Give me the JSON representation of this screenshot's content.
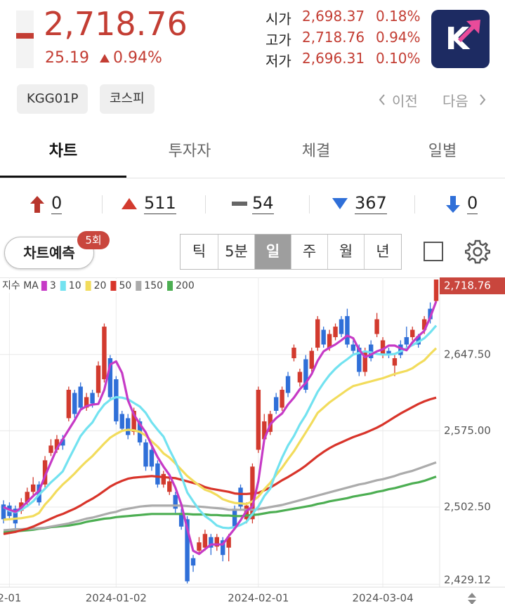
{
  "quote": {
    "price": "2,718.76",
    "change": "25.19",
    "change_rate": "0.94%",
    "rows": [
      {
        "label": "시가",
        "value": "2,698.37",
        "rate": "0.18%"
      },
      {
        "label": "고가",
        "value": "2,718.76",
        "rate": "0.94%"
      },
      {
        "label": "저가",
        "value": "2,696.31",
        "rate": "0.10%"
      }
    ],
    "logo": "K"
  },
  "tags": [
    "KGG01P",
    "코스피"
  ],
  "nav": {
    "prev": "이전",
    "next": "다음"
  },
  "tabs": [
    "차트",
    "투자자",
    "체결",
    "일별"
  ],
  "active_tab": 0,
  "breadth": [
    0,
    511,
    54,
    367,
    0
  ],
  "predict": {
    "label": "차트예측",
    "badge": "5회"
  },
  "periods": [
    "틱",
    "5분",
    "일",
    "주",
    "월",
    "년"
  ],
  "selected_period": 2,
  "chart_data": {
    "type": "candlestick",
    "categories": [
      null,
      "2-01",
      null,
      null,
      null,
      null,
      null,
      null,
      null,
      null,
      null,
      null,
      null,
      null,
      null,
      null,
      null,
      null,
      null,
      "2024-01-02",
      null,
      null,
      null,
      null,
      null,
      null,
      null,
      null,
      null,
      null,
      null,
      null,
      null,
      null,
      null,
      null,
      null,
      null,
      null,
      null,
      null,
      null,
      null,
      "2024-02-01",
      null,
      null,
      null,
      null,
      null,
      null,
      null,
      null,
      null,
      null,
      null,
      null,
      null,
      null,
      null,
      null,
      null,
      null,
      null,
      null,
      "2024-03-04",
      null,
      null,
      null,
      null,
      null,
      null,
      null,
      null,
      null
    ],
    "open": [
      2505,
      2504,
      2501,
      2499,
      2507,
      2517,
      2524,
      2524,
      2554,
      2557,
      2567,
      2587,
      2611,
      2617,
      2597,
      2611,
      2611,
      2624,
      2644,
      2624,
      2591,
      2587,
      2574,
      2584,
      2564,
      2557,
      2544,
      2524,
      2517,
      2514,
      2497,
      2491,
      2454,
      2461,
      2464,
      2474,
      2465,
      2471,
      2464,
      2501,
      2521,
      2491,
      2491,
      2557,
      2567,
      2574,
      2607,
      2597,
      2627,
      2644,
      2621,
      2643,
      2634,
      2654,
      2671,
      2654,
      2664,
      2681,
      2684,
      2657,
      2654,
      2631,
      2657,
      2667,
      2647,
      2651,
      2637,
      2657,
      2664,
      2664,
      2665,
      2671,
      2691,
      2698.37
    ],
    "high": [
      2509,
      2507,
      2504,
      2511,
      2521,
      2531,
      2527,
      2551,
      2567,
      2571,
      2571,
      2617,
      2614,
      2621,
      2611,
      2614,
      2641,
      2677,
      2647,
      2627,
      2594,
      2591,
      2597,
      2587,
      2567,
      2561,
      2547,
      2537,
      2531,
      2517,
      2501,
      2494,
      2457,
      2474,
      2481,
      2477,
      2477,
      2474,
      2477,
      2504,
      2524,
      2507,
      2544,
      2617,
      2591,
      2594,
      2611,
      2617,
      2631,
      2657,
      2634,
      2647,
      2654,
      2684,
      2674,
      2671,
      2677,
      2684,
      2691,
      2661,
      2657,
      2654,
      2661,
      2687,
      2664,
      2654,
      2647,
      2661,
      2674,
      2674,
      2667,
      2684,
      2697,
      2718.76
    ],
    "low": [
      2487,
      2490,
      2478,
      2496,
      2504,
      2514,
      2504,
      2521,
      2551,
      2554,
      2557,
      2584,
      2587,
      2594,
      2594,
      2597,
      2607,
      2621,
      2604,
      2581,
      2574,
      2567,
      2571,
      2561,
      2537,
      2537,
      2521,
      2521,
      2514,
      2497,
      2481,
      2430,
      2441,
      2457,
      2461,
      2457,
      2461,
      2451,
      2451,
      2481,
      2499,
      2487,
      2487,
      2554,
      2564,
      2571,
      2591,
      2594,
      2607,
      2641,
      2617,
      2611,
      2631,
      2651,
      2654,
      2651,
      2661,
      2664,
      2654,
      2647,
      2627,
      2627,
      2641,
      2664,
      2644,
      2644,
      2627,
      2644,
      2654,
      2661,
      2654,
      2667,
      2677,
      2696.31
    ],
    "close": [
      2491,
      2494,
      2487,
      2507,
      2517,
      2524,
      2507,
      2547,
      2561,
      2567,
      2561,
      2614,
      2591,
      2597,
      2607,
      2601,
      2637,
      2674,
      2607,
      2584,
      2577,
      2571,
      2594,
      2564,
      2541,
      2541,
      2524,
      2534,
      2527,
      2501,
      2484,
      2432,
      2447,
      2469,
      2477,
      2464,
      2474,
      2457,
      2474,
      2484,
      2503,
      2504,
      2541,
      2614,
      2584,
      2591,
      2594,
      2614,
      2611,
      2654,
      2631,
      2614,
      2651,
      2681,
      2657,
      2667,
      2674,
      2667,
      2657,
      2651,
      2631,
      2651,
      2644,
      2681,
      2661,
      2647,
      2644,
      2647,
      2657,
      2671,
      2657,
      2681,
      2681,
      2718.76
    ],
    "up_color": "#d23a2e",
    "down_color": "#2f6fd8",
    "moving_averages": {
      "label": "지수 MA",
      "series": [
        {
          "name": "3",
          "color": "#c63ac6",
          "values": [
            2502.5,
            2500,
            2498,
            2502,
            2507.5,
            2513,
            2518,
            2532,
            2545,
            2558,
            2567,
            2576,
            2585,
            2595,
            2598.5,
            2600,
            2600.5,
            2614,
            2638,
            2641,
            2630,
            2604,
            2590.5,
            2581.5,
            2573.5,
            2561,
            2550,
            2541,
            2533,
            2521,
            2505,
            2482,
            2461,
            2458,
            2462.5,
            2467,
            2467,
            2467,
            2475,
            2482,
            2490,
            2499,
            2503,
            2527,
            2567,
            2581,
            2587,
            2591.5,
            2600,
            2606.5,
            2614.5,
            2620.5,
            2629,
            2641.5,
            2650.5,
            2654,
            2657,
            2661,
            2665.5,
            2663,
            2652,
            2645,
            2647.5,
            2650.5,
            2652.5,
            2656,
            2656,
            2653.5,
            2651.5,
            2659,
            2665,
            2670,
            2683,
            2698
          ]
        },
        {
          "name": "10",
          "color": "#72e2f0",
          "values": [
            2502.5,
            2499,
            2497.5,
            2500,
            2503.5,
            2508,
            2514.5,
            2520,
            2526,
            2531,
            2536.5,
            2548,
            2559,
            2570,
            2577,
            2583,
            2592.5,
            2600,
            2604.5,
            2607,
            2606.5,
            2605,
            2601.5,
            2598,
            2592,
            2583,
            2576,
            2569.5,
            2557,
            2546,
            2532,
            2516.5,
            2508,
            2500,
            2494,
            2490,
            2485,
            2483,
            2482.5,
            2483.5,
            2485.5,
            2488.5,
            2496,
            2503,
            2513,
            2520,
            2536,
            2549.5,
            2561,
            2570,
            2581,
            2590,
            2601,
            2612,
            2620.5,
            2628,
            2634,
            2639,
            2643,
            2647.5,
            2649,
            2650.5,
            2649.5,
            2648,
            2647.5,
            2647.5,
            2648,
            2650.5,
            2653.5,
            2656.5,
            2659.5,
            2663,
            2668.5,
            2675
          ]
        },
        {
          "name": "20",
          "color": "#f2dc5c",
          "values": [
            2490.5,
            2491,
            2491.5,
            2492,
            2493,
            2494,
            2497,
            2505,
            2511,
            2518,
            2524,
            2529,
            2534.5,
            2540.5,
            2546,
            2551,
            2557,
            2563,
            2568.5,
            2572,
            2575,
            2576,
            2575.5,
            2574,
            2570.5,
            2565,
            2560,
            2553.5,
            2549.5,
            2544,
            2538,
            2532,
            2527.5,
            2523,
            2519,
            2517,
            2514,
            2510,
            2508,
            2506.5,
            2506,
            2505.5,
            2508,
            2512.5,
            2519.5,
            2525.5,
            2533,
            2540,
            2548,
            2555.5,
            2564.5,
            2573.5,
            2582.5,
            2592,
            2597,
            2602,
            2606,
            2610,
            2614,
            2617.5,
            2619,
            2620.5,
            2622,
            2623.5,
            2625,
            2627,
            2629,
            2630.5,
            2632,
            2634.5,
            2638.5,
            2642,
            2648,
            2653.5
          ]
        },
        {
          "name": "50",
          "color": "#d8342a",
          "values": [
            2477,
            2478,
            2479,
            2480.5,
            2482,
            2484,
            2486.5,
            2489,
            2491.5,
            2494,
            2496,
            2498.5,
            2501,
            2504,
            2507.5,
            2510.5,
            2514,
            2518,
            2522,
            2525,
            2527.5,
            2529.5,
            2530.5,
            2531,
            2531.5,
            2532,
            2531.5,
            2531,
            2530.5,
            2530,
            2528.5,
            2527,
            2525.5,
            2524,
            2521.5,
            2520,
            2519,
            2518,
            2517,
            2515.5,
            2515,
            2515,
            2515.5,
            2516,
            2518.5,
            2521,
            2524.5,
            2528,
            2531,
            2534.5,
            2538,
            2542,
            2546.5,
            2551,
            2555,
            2558.5,
            2561.5,
            2564,
            2566.5,
            2569,
            2571,
            2573,
            2575.5,
            2578,
            2581,
            2584.5,
            2588,
            2591.5,
            2594.5,
            2597.5,
            2600.5,
            2603,
            2605,
            2606.5
          ]
        },
        {
          "name": "150",
          "color": "#ababab",
          "values": [
            2480.5,
            2481,
            2481.5,
            2481.5,
            2482,
            2482,
            2482.5,
            2483,
            2484,
            2485,
            2486,
            2487,
            2488.5,
            2490,
            2491.5,
            2492.5,
            2494,
            2495.5,
            2497,
            2498,
            2500,
            2501,
            2502,
            2503,
            2503.5,
            2504,
            2504,
            2504,
            2504,
            2504,
            2504,
            2503.5,
            2503,
            2503,
            2502.5,
            2502,
            2501.5,
            2501,
            2500,
            2500,
            2500,
            2500,
            2500,
            2500.5,
            2501.5,
            2502.5,
            2503.5,
            2504.5,
            2506,
            2507.5,
            2509,
            2510.5,
            2512,
            2513.5,
            2515,
            2516.5,
            2518,
            2519.5,
            2521,
            2522.5,
            2524,
            2525,
            2526.5,
            2528,
            2529,
            2530.5,
            2532,
            2534,
            2535.5,
            2537,
            2539,
            2541,
            2543,
            2545
          ]
        },
        {
          "name": "200",
          "color": "#4cae52",
          "values": [
            2478.5,
            2479,
            2479.5,
            2480,
            2480.5,
            2481,
            2482,
            2482.5,
            2483.5,
            2484,
            2484.5,
            2485,
            2486,
            2487,
            2488.5,
            2489.5,
            2490.5,
            2491.5,
            2492,
            2493,
            2493.5,
            2494,
            2494.5,
            2495,
            2495.5,
            2496,
            2496,
            2496,
            2496,
            2496,
            2496,
            2496,
            2495.5,
            2495.5,
            2495.5,
            2495,
            2495,
            2494.5,
            2494.5,
            2494,
            2494,
            2494.5,
            2495,
            2495.5,
            2496.5,
            2497.5,
            2498,
            2499,
            2500,
            2501,
            2502,
            2503,
            2504,
            2505.5,
            2506.5,
            2508,
            2509,
            2510,
            2511,
            2512.5,
            2513.5,
            2514.5,
            2515.5,
            2517,
            2518,
            2519.5,
            2520.5,
            2522,
            2523.5,
            2525,
            2526,
            2527.5,
            2529.5,
            2531.5
          ]
        }
      ]
    },
    "ylim": [
      2429.12,
      2718.76
    ],
    "yticks": [
      {
        "value": 2647.5,
        "label": "2,647.50"
      },
      {
        "value": 2575,
        "label": "2,575.00"
      },
      {
        "value": 2502.5,
        "label": "2,502.50"
      },
      {
        "value": 2429.12,
        "label": "2,429.12"
      }
    ],
    "current_price": {
      "value": 2718.76,
      "label": "2,718.76"
    },
    "grid": true
  }
}
